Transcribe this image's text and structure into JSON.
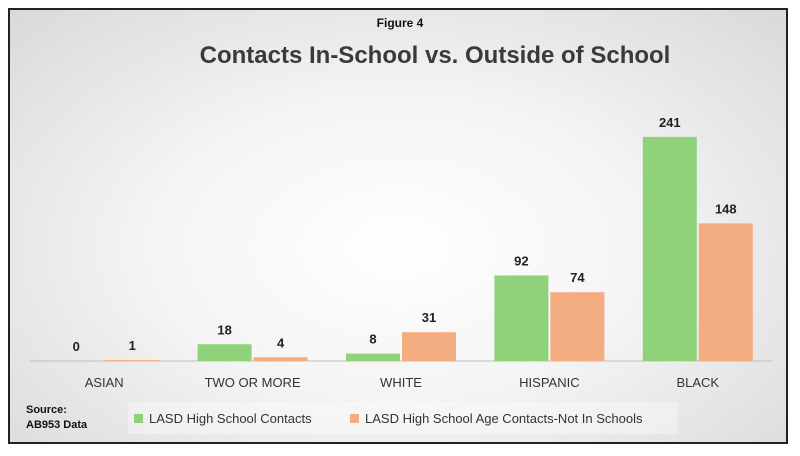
{
  "figure_label": "Figure 4",
  "source": {
    "line1": "Source:",
    "line2": "AB953 Data"
  },
  "colors": {
    "series1": "#8fd27a",
    "series2": "#f4ad80",
    "axis": "#bfbfbf",
    "label": "#222222"
  },
  "chart_data": {
    "type": "bar",
    "title": "Contacts In-School vs. Outside of School",
    "categories": [
      "ASIAN",
      "TWO OR MORE",
      "WHITE",
      "HISPANIC",
      "BLACK"
    ],
    "series": [
      {
        "name": "LASD High School Contacts",
        "values": [
          0,
          18,
          8,
          92,
          241
        ]
      },
      {
        "name": "LASD High School Age Contacts-Not In Schools",
        "values": [
          1,
          4,
          31,
          74,
          148
        ]
      }
    ],
    "ylim": [
      0,
      260
    ],
    "grid": false,
    "legend": "bottom",
    "data_labels": true
  }
}
